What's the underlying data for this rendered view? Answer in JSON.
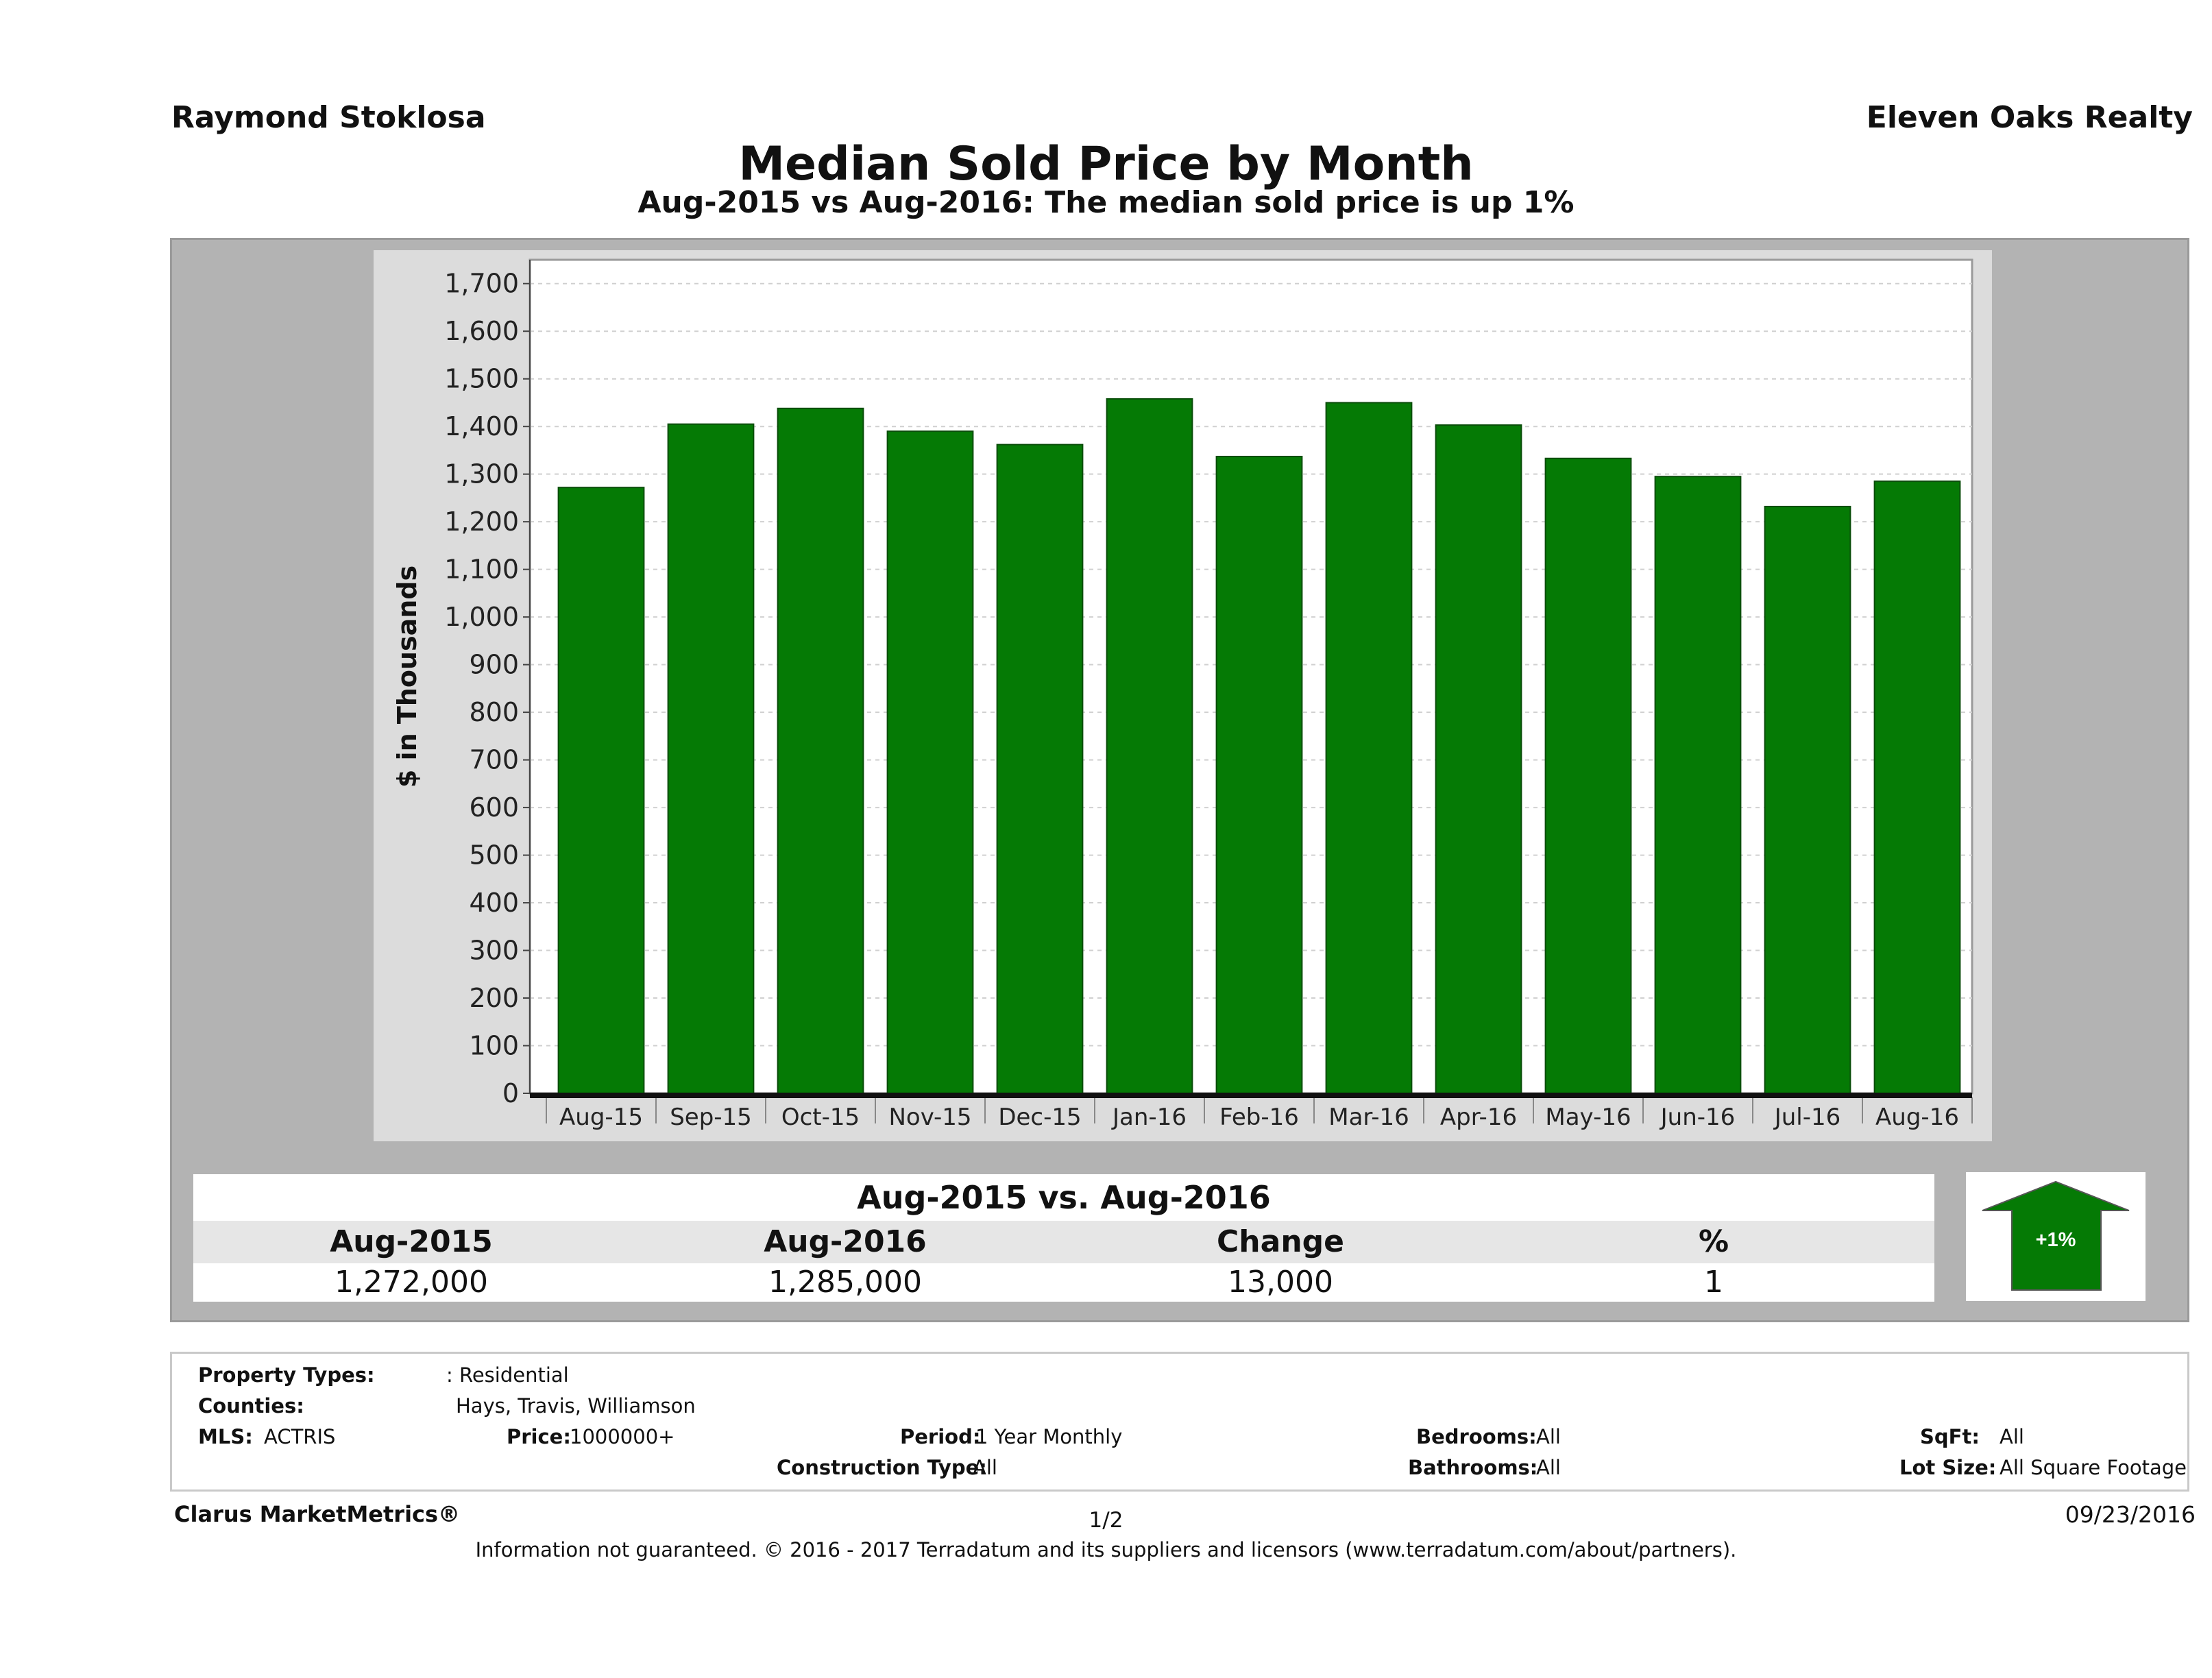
{
  "header": {
    "agent_name": "Raymond Stoklosa",
    "brokerage": "Eleven Oaks Realty"
  },
  "chart_data": {
    "type": "bar",
    "title": "Median Sold Price by Month",
    "subtitle": "Aug-2015 vs Aug-2016: The median sold price is up 1%",
    "ylabel": "$ in Thousands",
    "xlabel": "",
    "categories": [
      "Aug-15",
      "Sep-15",
      "Oct-15",
      "Nov-15",
      "Dec-15",
      "Jan-16",
      "Feb-16",
      "Mar-16",
      "Apr-16",
      "May-16",
      "Jun-16",
      "Jul-16",
      "Aug-16"
    ],
    "values": [
      1272,
      1405,
      1438,
      1390,
      1362,
      1458,
      1337,
      1450,
      1403,
      1333,
      1295,
      1232,
      1285
    ],
    "ylim": [
      0,
      1750
    ],
    "yticks": [
      0,
      100,
      200,
      300,
      400,
      500,
      600,
      700,
      800,
      900,
      1000,
      1100,
      1200,
      1300,
      1400,
      1500,
      1600,
      1700
    ],
    "ytick_labels": [
      "0",
      "100",
      "200",
      "300",
      "400",
      "500",
      "600",
      "700",
      "800",
      "900",
      "1,000",
      "1,100",
      "1,200",
      "1,300",
      "1,400",
      "1,500",
      "1,600",
      "1,700"
    ],
    "bar_color": "#057a05",
    "grid": true
  },
  "comparison": {
    "title": "Aug-2015 vs. Aug-2016",
    "headers": [
      "Aug-2015",
      "Aug-2016",
      "Change",
      "%"
    ],
    "values": [
      "1,272,000",
      "1,285,000",
      "13,000",
      "1"
    ],
    "badge": "+1%",
    "badge_color": "#057a05"
  },
  "filters": {
    "property_types_label": "Property Types:",
    "property_types_value": ": Residential",
    "counties_label": "Counties:",
    "counties_value": "Hays, Travis, Williamson",
    "mls_label": "MLS:",
    "mls_value": "ACTRIS",
    "price_label": "Price:",
    "price_value": "1000000+",
    "period_label": "Period:",
    "period_value": "1 Year Monthly",
    "construction_label": "Construction Type:",
    "construction_value": "All",
    "bedrooms_label": "Bedrooms:",
    "bedrooms_value": "All",
    "bathrooms_label": "Bathrooms:",
    "bathrooms_value": "All",
    "sqft_label": "SqFt:",
    "sqft_value": "All",
    "lot_size_label": "Lot Size:",
    "lot_size_value": "All Square Footage"
  },
  "footer": {
    "brand": "Clarus MarketMetrics®",
    "page": "1/2",
    "date": "09/23/2016",
    "disclaimer": "Information not guaranteed. © 2016 - 2017 Terradatum and its suppliers and licensors (www.terradatum.com/about/partners)."
  }
}
